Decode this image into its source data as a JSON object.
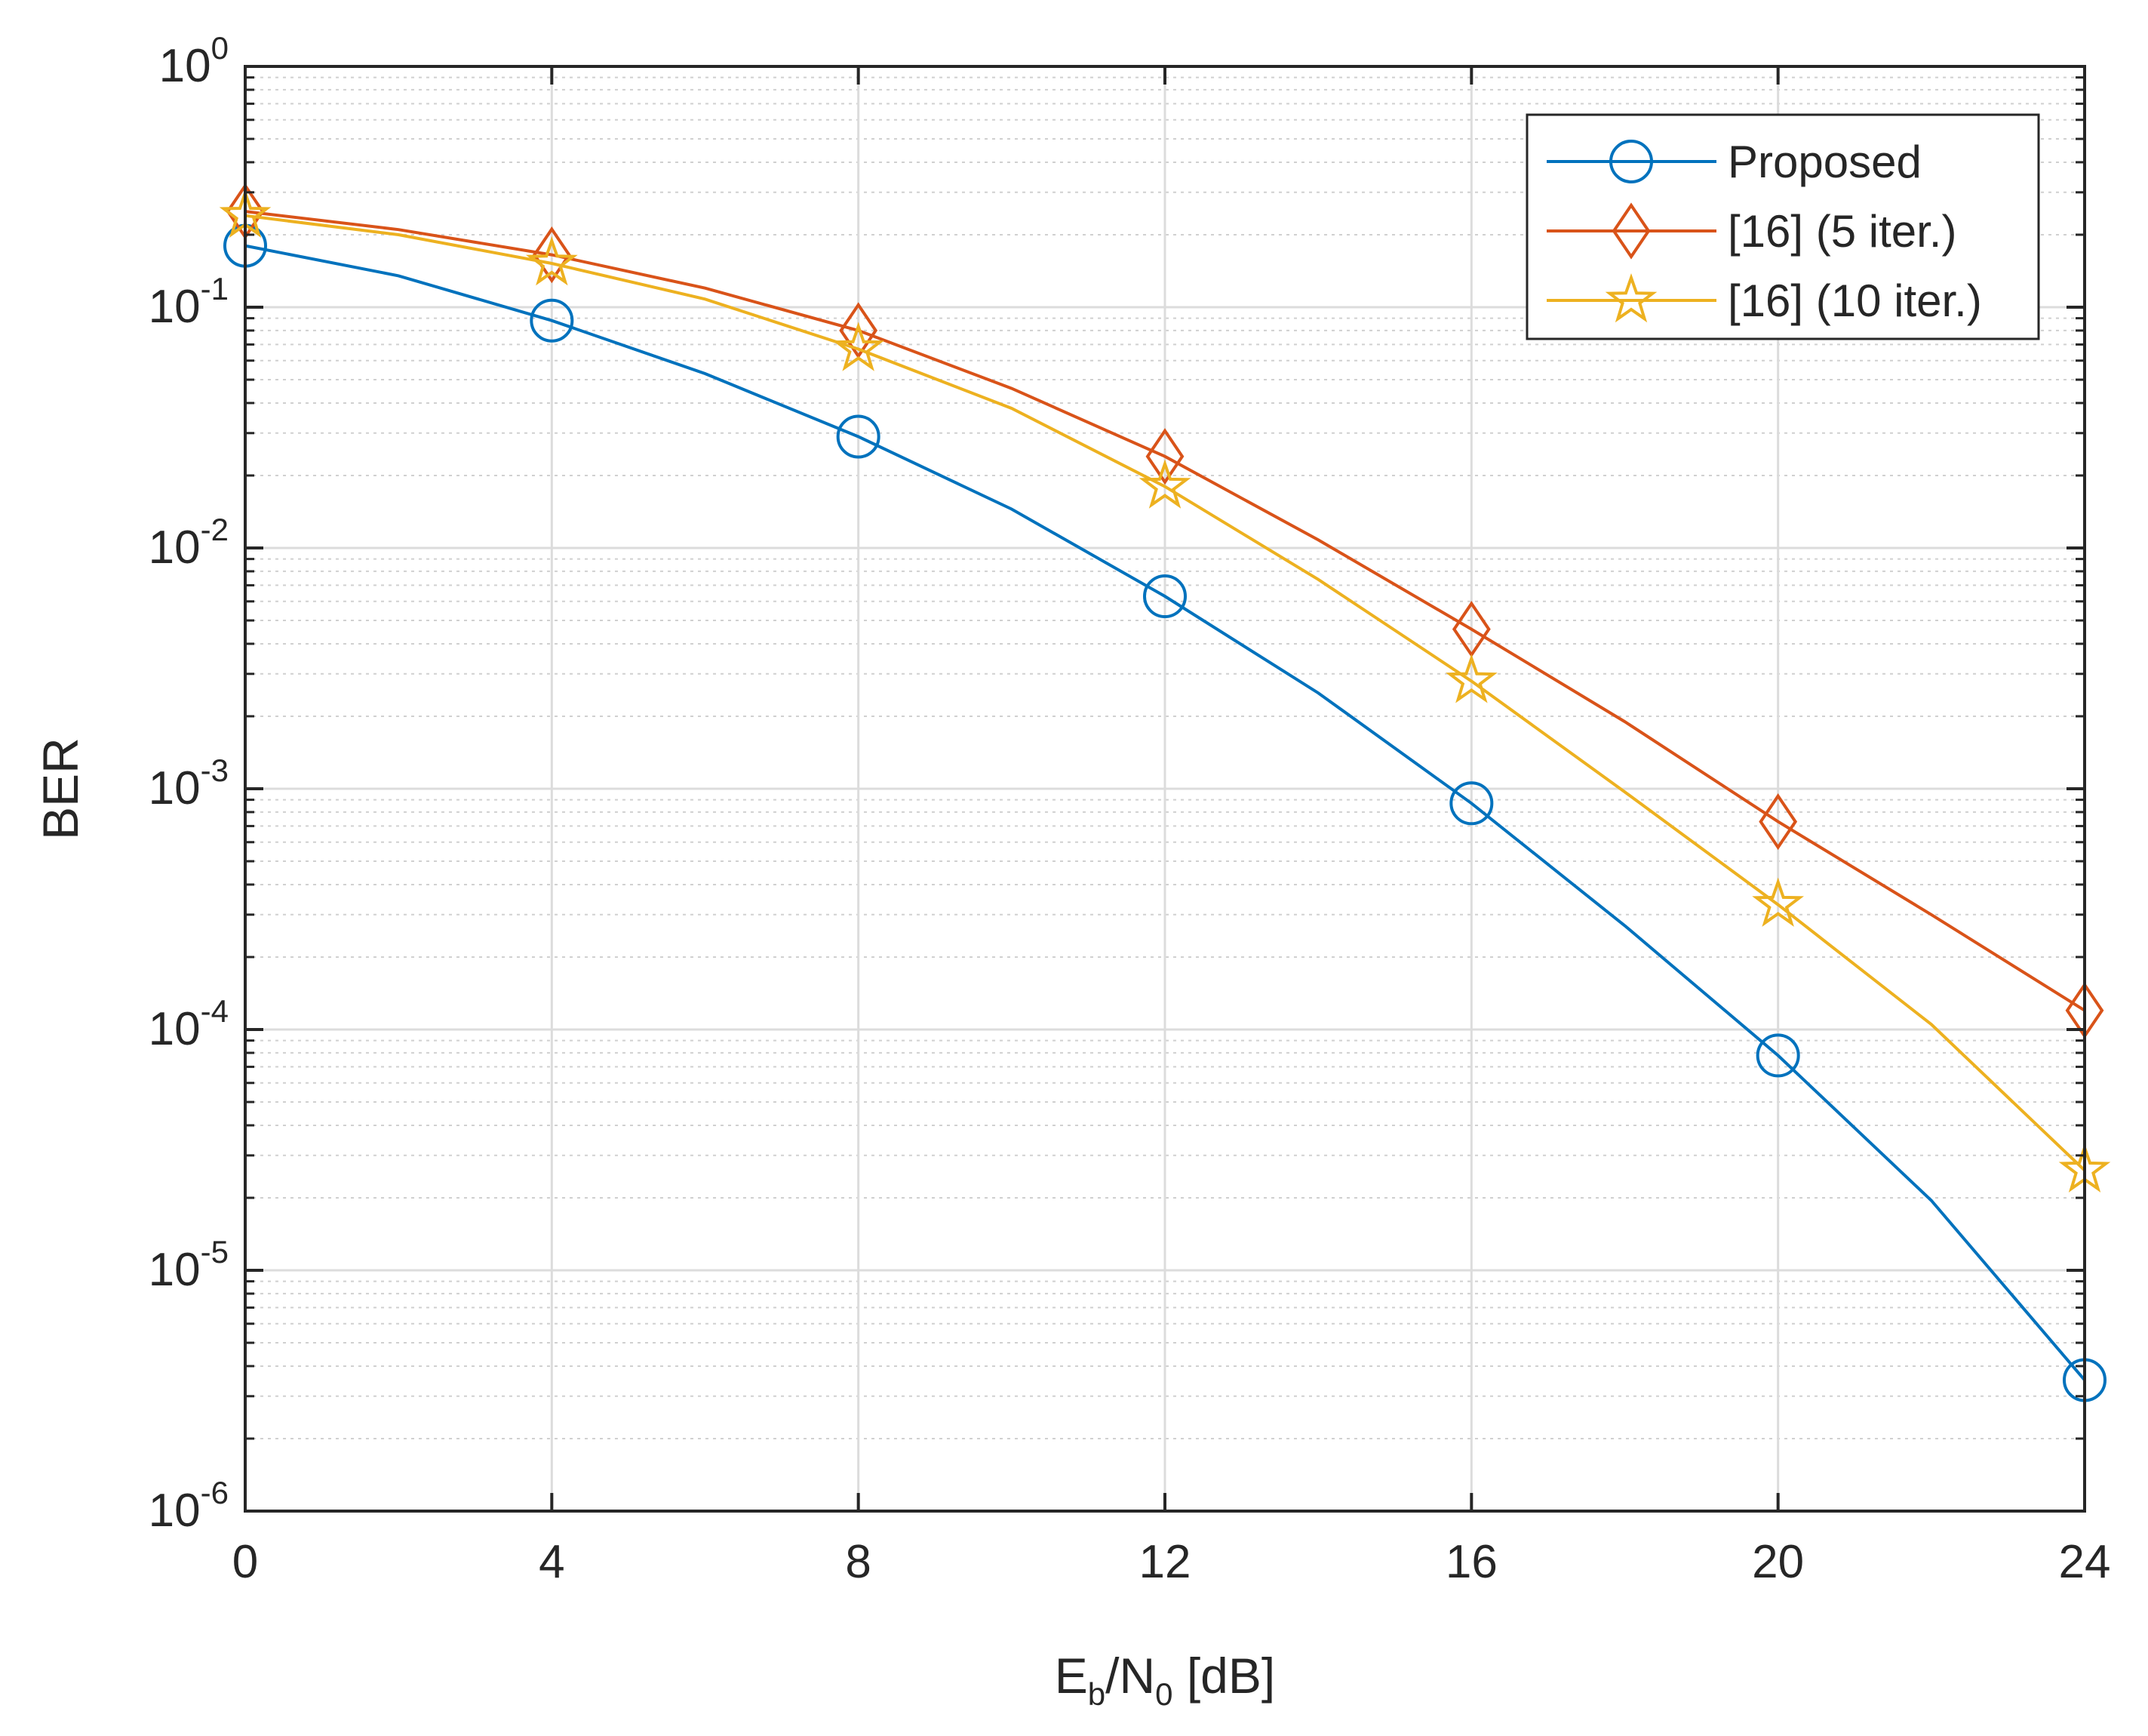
{
  "chart_data": {
    "type": "line",
    "xlabel": "E_b/N_0 [dB]",
    "xlabel_parts": {
      "main1": "E",
      "sub1": "b",
      "main2": "/N",
      "sub2": "0",
      "main3": " [dB]"
    },
    "ylabel": "BER",
    "x_scale": "linear",
    "y_scale": "log",
    "xlim": [
      0,
      24
    ],
    "ylim": [
      1e-06,
      1
    ],
    "x_ticks": [
      0,
      4,
      8,
      12,
      16,
      20,
      24
    ],
    "x_tick_labels": [
      "0",
      "4",
      "8",
      "12",
      "16",
      "20",
      "24"
    ],
    "y_ticks": [
      {
        "value": 1e-06,
        "base": "10",
        "exp": "-6"
      },
      {
        "value": 1e-05,
        "base": "10",
        "exp": "-5"
      },
      {
        "value": 0.0001,
        "base": "10",
        "exp": "-4"
      },
      {
        "value": 0.001,
        "base": "10",
        "exp": "-3"
      },
      {
        "value": 0.01,
        "base": "10",
        "exp": "-2"
      },
      {
        "value": 0.1,
        "base": "10",
        "exp": "-1"
      },
      {
        "value": 1,
        "base": "10",
        "exp": "0"
      }
    ],
    "grid": true,
    "minor_grid": true,
    "legend_position": "top-right",
    "series": [
      {
        "name": "Proposed",
        "color": "#0072BD",
        "marker": "circle",
        "x": [
          0,
          2,
          4,
          6,
          8,
          10,
          12,
          14,
          16,
          18,
          20,
          22,
          24
        ],
        "y": [
          0.18,
          0.135,
          0.088,
          0.053,
          0.029,
          0.0145,
          0.0063,
          0.0025,
          0.00087,
          0.00027,
          7.8e-05,
          1.95e-05,
          3.5e-06
        ],
        "marker_x": [
          0,
          4,
          8,
          12,
          16,
          20,
          24
        ]
      },
      {
        "name": "[16] (5 iter.)",
        "color": "#D95319",
        "marker": "diamond",
        "x": [
          0,
          2,
          4,
          6,
          8,
          10,
          12,
          14,
          16,
          18,
          20,
          22,
          24
        ],
        "y": [
          0.25,
          0.21,
          0.165,
          0.12,
          0.08,
          0.046,
          0.024,
          0.0108,
          0.0046,
          0.0019,
          0.00073,
          0.0003,
          0.00012
        ],
        "marker_x": [
          0,
          4,
          8,
          12,
          16,
          20,
          24
        ]
      },
      {
        "name": "[16] (10 iter.)",
        "color": "#EDB120",
        "marker": "star",
        "x": [
          0,
          2,
          4,
          6,
          8,
          10,
          12,
          14,
          16,
          18,
          20,
          22,
          24
        ],
        "y": [
          0.24,
          0.2,
          0.152,
          0.108,
          0.067,
          0.038,
          0.018,
          0.0074,
          0.0028,
          0.00097,
          0.00033,
          0.000105,
          2.6e-05
        ],
        "marker_x": [
          0,
          4,
          8,
          12,
          16,
          20,
          24
        ]
      }
    ]
  }
}
